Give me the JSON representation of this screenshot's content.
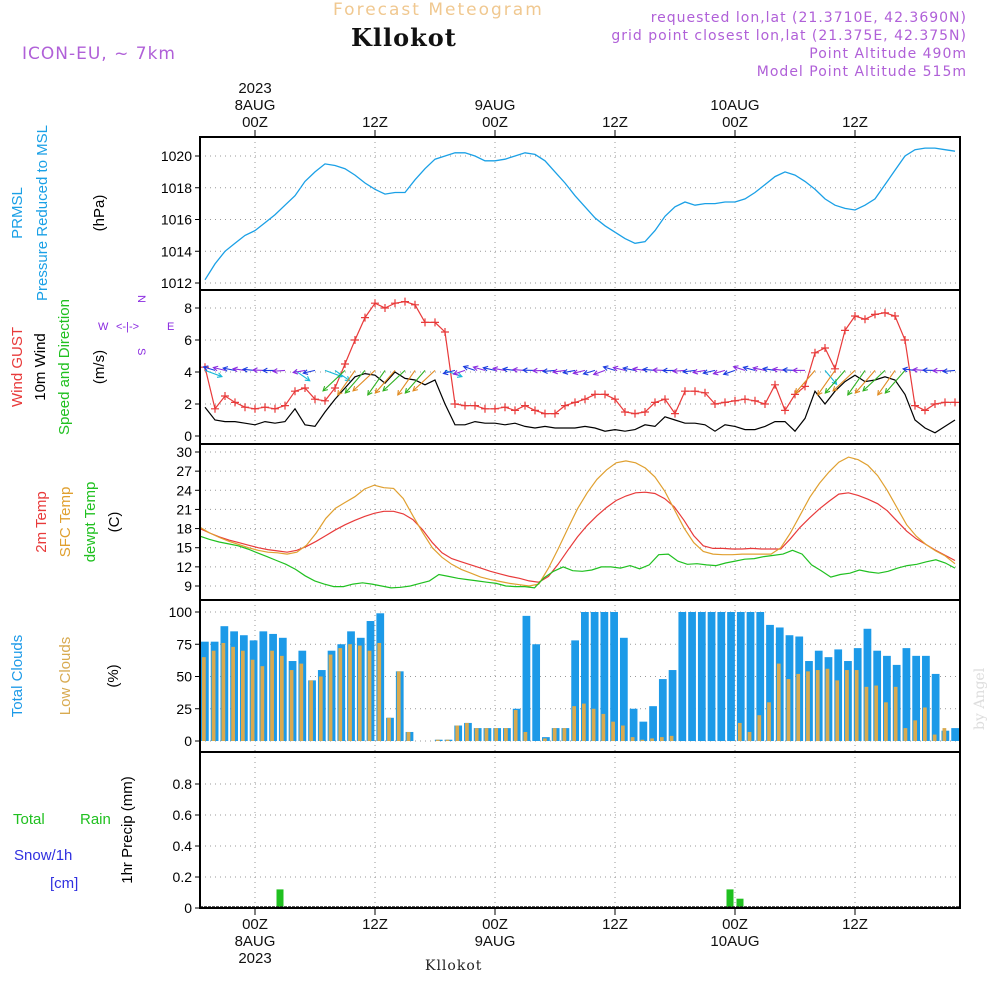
{
  "header": {
    "title": "Forecast Meteogram",
    "location": "Kllokot",
    "model": "ICON-EU, ~ 7km",
    "requested": "requested lon,lat (21.3710E, 42.3690N)",
    "grid_point": "grid point closest lon,lat (21.375E, 42.375N)",
    "point_altitude": "Point Altitude 490m",
    "model_altitude": "Model Point Altitude 515m"
  },
  "footer": {
    "location": "Kllokot",
    "watermark": "by Angel"
  },
  "time_axis": {
    "top_ticks": [
      {
        "hour": 0,
        "lines": [
          "2023",
          "8AUG",
          "00Z"
        ]
      },
      {
        "hour": 12,
        "lines": [
          "12Z"
        ]
      },
      {
        "hour": 24,
        "lines": [
          "9AUG",
          "00Z"
        ]
      },
      {
        "hour": 36,
        "lines": [
          "12Z"
        ]
      },
      {
        "hour": 48,
        "lines": [
          "10AUG",
          "00Z"
        ]
      },
      {
        "hour": 60,
        "lines": [
          "12Z"
        ]
      }
    ],
    "bottom_ticks": [
      {
        "hour": 0,
        "lines": [
          "00Z",
          "8AUG",
          "2023"
        ]
      },
      {
        "hour": 12,
        "lines": [
          "12Z"
        ]
      },
      {
        "hour": 24,
        "lines": [
          "00Z",
          "9AUG"
        ]
      },
      {
        "hour": 36,
        "lines": [
          "12Z"
        ]
      },
      {
        "hour": 48,
        "lines": [
          "00Z",
          "10AUG"
        ]
      },
      {
        "hour": 60,
        "lines": [
          "12Z"
        ]
      }
    ],
    "range_hours": [
      -5.5,
      70.5
    ]
  },
  "colors": {
    "pressure": "#1aa0e6",
    "gust": "#e83a3a",
    "wind": "#000000",
    "temp": "#e83a3a",
    "sfc_temp": "#e0a030",
    "dewpt": "#20c020",
    "total_clouds": "#1c9ae8",
    "low_clouds": "#d8aa50",
    "rain": "#20c020",
    "snow": "#3030e0",
    "wind_label": "#20c020",
    "arrow_palette": [
      "#1a3ae0",
      "#8a2ae0",
      "#18b8d8",
      "#18c890",
      "#e08a20",
      "#30b020"
    ]
  },
  "labels": {
    "pressure": [
      "PRMSL",
      "Pressure Reduced to MSL"
    ],
    "pressure_unit": "(hPa)",
    "wind": [
      "Wind GUST",
      "10m Wind",
      "Speed and Direction"
    ],
    "wind_unit": "(m/s)",
    "compass": {
      "w": "W",
      "e": "E",
      "n": "N",
      "s": "S",
      "arrow": "<-|->"
    },
    "temp": [
      "2m Temp",
      "SFC Temp",
      "dewpt Temp"
    ],
    "temp_unit": "(C)",
    "clouds": [
      "Total Clouds",
      "Low Clouds"
    ],
    "clouds_unit": "(%)",
    "precip": [
      "Total",
      "Rain",
      "Snow/1h",
      "[cm]"
    ],
    "precip_unit": "1hr Precip (mm)"
  },
  "chart_data": [
    {
      "type": "line",
      "panel": "pressure",
      "ylabel": "(hPa)",
      "ylim": [
        1011.5,
        1021
      ],
      "yticks": [
        1012,
        1014,
        1016,
        1018,
        1020
      ],
      "series": [
        {
          "name": "PRMSL",
          "x": [
            -5,
            -4,
            -3,
            -2,
            -1,
            0,
            1,
            2,
            3,
            4,
            5,
            6,
            7,
            8,
            9,
            10,
            11,
            12,
            13,
            14,
            15,
            16,
            17,
            18,
            19,
            20,
            21,
            22,
            23,
            24,
            25,
            26,
            27,
            28,
            29,
            30,
            31,
            32,
            33,
            34,
            35,
            36,
            37,
            38,
            39,
            40,
            41,
            42,
            43,
            44,
            45,
            46,
            47,
            48,
            49,
            50,
            51,
            52,
            53,
            54,
            55,
            56,
            57,
            58,
            59,
            60,
            61,
            62,
            63,
            64,
            65,
            66,
            67,
            68,
            69,
            70
          ],
          "values": [
            1012.2,
            1013.2,
            1014.0,
            1014.5,
            1015.0,
            1015.3,
            1015.8,
            1016.3,
            1016.9,
            1017.5,
            1018.4,
            1019.0,
            1019.5,
            1019.4,
            1019.2,
            1018.8,
            1018.3,
            1017.9,
            1017.6,
            1017.7,
            1017.7,
            1018.5,
            1019.2,
            1019.8,
            1020.0,
            1020.2,
            1020.2,
            1020.0,
            1019.7,
            1019.7,
            1019.8,
            1020.0,
            1020.2,
            1020.1,
            1019.7,
            1019.0,
            1018.3,
            1017.5,
            1016.8,
            1016.1,
            1015.6,
            1015.2,
            1014.8,
            1014.5,
            1014.6,
            1015.3,
            1016.2,
            1016.8,
            1017.1,
            1016.9,
            1017.0,
            1017.0,
            1017.1,
            1017.1,
            1017.3,
            1017.7,
            1018.2,
            1018.7,
            1019.0,
            1018.8,
            1018.4,
            1017.9,
            1017.3,
            1016.9,
            1016.7,
            1016.6,
            1016.9,
            1017.3,
            1018.2,
            1019.1,
            1020.0,
            1020.4,
            1020.5,
            1020.5,
            1020.4,
            1020.3
          ]
        }
      ]
    },
    {
      "type": "line",
      "panel": "wind",
      "ylabel": "(m/s)",
      "ylim": [
        0,
        9
      ],
      "yticks": [
        0,
        2,
        4,
        6,
        8
      ],
      "series": [
        {
          "name": "Wind GUST",
          "values": [
            4.3,
            1.7,
            2.5,
            2.1,
            1.8,
            1.7,
            1.8,
            1.7,
            1.9,
            2.8,
            3.0,
            2.3,
            2.2,
            3.0,
            4.5,
            6.0,
            7.4,
            8.3,
            8.0,
            8.3,
            8.4,
            8.2,
            7.1,
            7.1,
            6.5,
            2.0,
            1.9,
            1.9,
            1.7,
            1.7,
            1.8,
            1.6,
            1.9,
            1.6,
            1.4,
            1.4,
            1.9,
            2.1,
            2.3,
            2.6,
            2.6,
            2.3,
            1.5,
            1.4,
            1.5,
            2.1,
            2.3,
            1.4,
            2.8,
            2.8,
            2.7,
            2.0,
            2.1,
            2.2,
            2.3,
            2.2,
            2.0,
            3.2,
            1.6,
            2.6,
            3.1,
            5.2,
            5.5,
            4.2,
            6.6,
            7.5,
            7.3,
            7.6,
            7.7,
            7.5,
            6.0,
            1.9,
            1.6,
            2.0,
            2.1,
            2.1
          ]
        },
        {
          "name": "10m Wind",
          "values": [
            1.8,
            1.0,
            0.9,
            0.9,
            0.8,
            0.7,
            0.9,
            0.8,
            0.9,
            1.7,
            0.7,
            0.6,
            1.5,
            2.3,
            3.0,
            3.7,
            3.9,
            3.8,
            3.3,
            4.0,
            3.6,
            3.5,
            3.2,
            3.5,
            2.0,
            0.7,
            0.7,
            0.9,
            0.8,
            0.8,
            0.7,
            0.8,
            0.6,
            0.5,
            0.6,
            0.5,
            0.5,
            0.5,
            0.6,
            0.5,
            0.3,
            0.4,
            0.3,
            0.4,
            0.7,
            0.6,
            1.2,
            1.0,
            0.8,
            0.8,
            0.7,
            0.3,
            0.7,
            0.6,
            0.4,
            0.4,
            0.6,
            0.9,
            0.9,
            0.3,
            1.1,
            2.8,
            2.0,
            2.8,
            3.4,
            3.8,
            3.4,
            3.5,
            3.7,
            3.5,
            2.6,
            1.0,
            0.5,
            0.2,
            0.6,
            1.0
          ]
        }
      ]
    },
    {
      "type": "line",
      "panel": "temperature",
      "ylabel": "(C)",
      "ylim": [
        7.5,
        30
      ],
      "yticks": [
        9,
        12,
        15,
        18,
        21,
        24,
        27,
        30
      ],
      "series": [
        {
          "name": "2m Temp",
          "values": [
            18.0,
            17.3,
            16.7,
            16.2,
            15.8,
            15.4,
            15.0,
            14.7,
            14.5,
            14.3,
            14.6,
            15.2,
            16.0,
            16.9,
            17.8,
            18.6,
            19.3,
            19.9,
            20.4,
            20.7,
            20.7,
            20.3,
            19.4,
            17.8,
            15.8,
            14.2,
            13.3,
            12.8,
            12.3,
            11.8,
            11.3,
            10.9,
            10.5,
            10.2,
            9.8,
            9.6,
            10.5,
            12.4,
            14.6,
            16.7,
            18.5,
            20.0,
            21.3,
            22.4,
            23.1,
            23.6,
            23.7,
            23.5,
            22.7,
            21.4,
            19.3,
            16.9,
            15.3,
            14.9,
            14.9,
            14.8,
            14.8,
            14.9,
            14.8,
            14.8,
            14.8,
            16.4,
            18.2,
            19.7,
            21.1,
            22.3,
            23.4,
            23.6,
            23.2,
            22.6,
            21.9,
            20.8,
            19.2,
            17.6,
            16.4,
            15.5,
            14.6,
            13.8,
            13.0
          ]
        },
        {
          "name": "SFC Temp",
          "values": [
            18.2,
            17.3,
            16.6,
            16.0,
            15.5,
            15.0,
            14.6,
            14.3,
            14.2,
            14.0,
            14.3,
            15.4,
            17.3,
            19.6,
            21.2,
            22.1,
            23.0,
            24.2,
            24.8,
            24.4,
            24.3,
            22.7,
            20.0,
            17.4,
            15.0,
            13.5,
            12.4,
            11.6,
            11.0,
            10.4,
            10.0,
            9.7,
            9.4,
            9.2,
            9.0,
            9.3,
            11.8,
            14.8,
            18.0,
            21.1,
            23.6,
            25.7,
            27.2,
            28.3,
            28.6,
            28.3,
            27.5,
            26.1,
            23.9,
            21.0,
            18.1,
            15.8,
            14.4,
            14.0,
            13.9,
            13.9,
            14.0,
            14.0,
            14.0,
            14.0,
            15.0,
            17.3,
            20.1,
            22.9,
            25.1,
            26.9,
            28.4,
            29.2,
            28.8,
            27.9,
            26.3,
            24.0,
            21.3,
            18.6,
            16.8,
            15.5,
            14.5,
            13.7,
            12.5
          ]
        },
        {
          "name": "dewpt Temp",
          "values": [
            16.8,
            16.3,
            15.9,
            15.6,
            15.3,
            14.8,
            14.2,
            13.6,
            13.0,
            12.4,
            11.6,
            10.6,
            9.8,
            9.3,
            8.9,
            8.9,
            9.3,
            9.5,
            9.3,
            9.0,
            8.7,
            8.8,
            9.0,
            9.4,
            9.8,
            10.8,
            10.5,
            10.2,
            10.0,
            9.8,
            9.6,
            9.4,
            9.0,
            8.9,
            8.9,
            8.7,
            10.3,
            11.3,
            12.0,
            11.4,
            11.3,
            11.5,
            12.0,
            12.0,
            11.8,
            12.2,
            11.7,
            12.3,
            13.9,
            14.0,
            12.9,
            12.4,
            12.5,
            12.3,
            12.2,
            12.6,
            12.9,
            13.2,
            13.3,
            13.6,
            13.8,
            14.0,
            14.6,
            14.0,
            12.3,
            11.4,
            10.4,
            10.8,
            11.0,
            11.5,
            11.2,
            11.0,
            11.3,
            11.8,
            12.2,
            12.4,
            12.8,
            13.1,
            12.6,
            11.8
          ]
        }
      ]
    },
    {
      "type": "bar",
      "panel": "clouds",
      "ylabel": "(%)",
      "ylim": [
        0,
        105
      ],
      "yticks": [
        0,
        25,
        50,
        75,
        100
      ],
      "series": [
        {
          "name": "Total Clouds",
          "values": [
            77,
            77,
            89,
            85,
            82,
            78,
            85,
            83,
            80,
            62,
            70,
            47,
            55,
            70,
            75,
            85,
            80,
            93,
            99,
            18,
            54,
            7,
            0,
            0,
            1,
            1,
            12,
            14,
            10,
            10,
            10,
            10,
            25,
            97,
            75,
            3,
            10,
            10,
            78,
            100,
            100,
            100,
            100,
            80,
            25,
            15,
            27,
            48,
            55,
            100,
            100,
            100,
            100,
            100,
            100,
            100,
            100,
            100,
            90,
            88,
            82,
            81,
            62,
            70,
            65,
            71,
            62,
            72,
            87,
            70,
            66,
            59,
            72,
            66,
            66,
            52,
            8,
            10
          ]
        },
        {
          "name": "Low Clouds",
          "values": [
            65,
            70,
            76,
            73,
            70,
            63,
            58,
            70,
            66,
            55,
            60,
            47,
            50,
            67,
            72,
            75,
            74,
            70,
            76,
            18,
            54,
            7,
            0,
            0,
            1,
            1,
            12,
            14,
            10,
            10,
            10,
            10,
            24,
            7,
            0,
            2,
            10,
            10,
            27,
            29,
            25,
            21,
            15,
            12,
            3,
            1,
            2,
            3,
            4,
            0,
            0,
            0,
            0,
            0,
            0,
            14,
            7,
            20,
            30,
            60,
            48,
            52,
            54,
            55,
            56,
            47,
            55,
            55,
            42,
            43,
            30,
            42,
            10,
            16,
            26,
            5,
            10
          ]
        }
      ]
    },
    {
      "type": "bar",
      "panel": "precip",
      "ylabel": "1hr Precip (mm)",
      "ylim": [
        0,
        1.0
      ],
      "yticks": [
        0,
        0.2,
        0.4,
        0.6,
        0.8
      ],
      "series": [
        {
          "name": "Total Rain",
          "x": [
            -3,
            0,
            2,
            47,
            48
          ],
          "values": [
            0.005,
            0.005,
            0.12,
            0.12,
            0.06
          ]
        },
        {
          "name": "Snow/1h",
          "x": [],
          "values": []
        }
      ]
    }
  ]
}
